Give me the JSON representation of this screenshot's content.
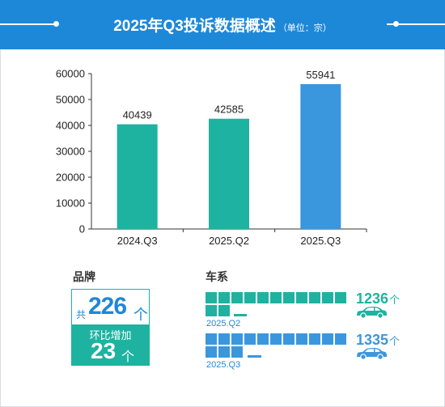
{
  "header": {
    "title": "2025年Q3投诉数据概述",
    "unit": "（单位：宗）"
  },
  "colors": {
    "header_bg": "#1e88d8",
    "teal": "#1eb3a0",
    "blue": "#3b97dd"
  },
  "chart_data": {
    "type": "bar",
    "categories": [
      "2024.Q3",
      "2025.Q2",
      "2025.Q3"
    ],
    "values": [
      40439,
      42585,
      55941
    ],
    "bar_colors": [
      "#1eb3a0",
      "#1eb3a0",
      "#3b97dd"
    ],
    "yticks": [
      0,
      10000,
      20000,
      30000,
      40000,
      50000,
      60000
    ],
    "ylim": [
      0,
      60000
    ],
    "grid": false
  },
  "brand": {
    "title": "品牌",
    "total_prefix": "共",
    "total": "226",
    "unit": "个",
    "change_label": "环比增加",
    "change": "23",
    "change_unit": "个"
  },
  "series": {
    "title": "车系",
    "rows": [
      {
        "label": "2025.Q2",
        "count": "1236",
        "unit": "个",
        "color": "#1eb3a0",
        "icon": "car-icon"
      },
      {
        "label": "2025.Q3",
        "count": "1335",
        "unit": "个",
        "color": "#3b97dd",
        "icon": "car-icon"
      }
    ]
  }
}
